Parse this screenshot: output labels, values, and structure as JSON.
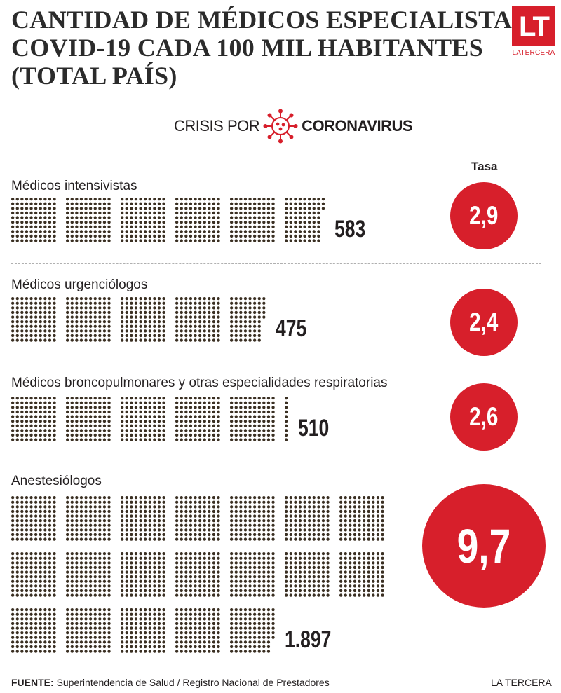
{
  "title_lines": [
    "CANTIDAD DE MÉDICOS ESPECIALISTAS",
    "COVID-19 CADA 100 MIL HABITANTES",
    "(TOTAL PAÍS)"
  ],
  "logo": {
    "mark": "LT",
    "name": "LATERCERA"
  },
  "crisis_banner": {
    "prefix": "CRISIS POR",
    "topic": "CORONAVIRUS",
    "icon": "virus-icon"
  },
  "tasa_header": "Tasa",
  "colors": {
    "accent": "#d71f2b",
    "dot": "#3a2f22",
    "text": "#231f20"
  },
  "chart_data": {
    "type": "pictogram",
    "unit": "1 dot = 1 médico",
    "dots_per_block": 100,
    "categories": [
      {
        "label": "Médicos intensivistas",
        "count": 583,
        "count_label": "583",
        "tasa": 2.9,
        "tasa_label": "2,9"
      },
      {
        "label": "Médicos urgenciólogos",
        "count": 475,
        "count_label": "475",
        "tasa": 2.4,
        "tasa_label": "2,4"
      },
      {
        "label": "Médicos broncopulmonares y otras especialidades respiratorias",
        "count": 510,
        "count_label": "510",
        "tasa": 2.6,
        "tasa_label": "2,6"
      },
      {
        "label": "Anestesiólogos",
        "count": 1897,
        "count_label": "1.897",
        "tasa": 9.7,
        "tasa_label": "9,7"
      }
    ]
  },
  "footer": {
    "source_label": "FUENTE:",
    "source_text": "Superintendencia de Salud / Registro Nacional de Prestadores",
    "brand": "LA TERCERA"
  }
}
